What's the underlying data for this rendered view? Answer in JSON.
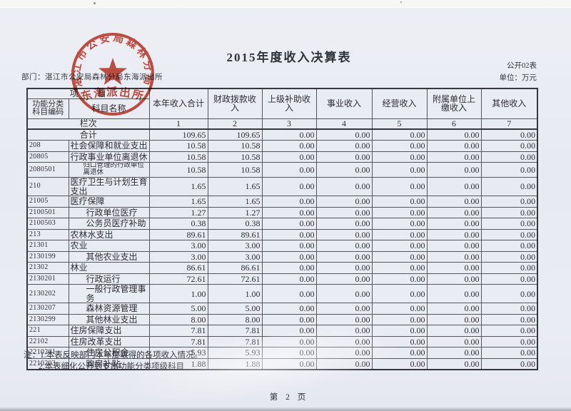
{
  "page": {
    "title": "2015年度收入决算表",
    "department_line": "部门：湛江市公安局森林分局东海派出所",
    "table_code": "公开02表",
    "unit_label": "单位：万元",
    "note_1": "注：1.本表反映部门本年度取得的各项收入情况。",
    "note_2": "2.本表细化公开到支出功能分类项级科目",
    "page_footer": "第 2 页"
  },
  "seal": {
    "ring_text": "湛江市公安局森林分局",
    "bottom_text": "东海派出所",
    "color": "#c43a2b"
  },
  "table": {
    "corner_top": "项　　目",
    "corner_left": "功能分类\n科目编码",
    "corner_right": "科目名称",
    "columns": [
      "本年收入合计",
      "财政拨款收入",
      "上级补助收入",
      "事业收入",
      "经营收入",
      "附属单位上缴收入",
      "其他收入"
    ],
    "lanci_label": "栏次",
    "lanci_numbers": [
      "1",
      "2",
      "3",
      "4",
      "5",
      "6",
      "7"
    ],
    "rows": [
      {
        "code": "",
        "name": "合计",
        "indent": 0,
        "total": true,
        "values": [
          "109.65",
          "109.65",
          "0.00",
          "0.00",
          "0.00",
          "0.00",
          "0.00"
        ]
      },
      {
        "code": "208",
        "name": "社会保障和就业支出",
        "indent": 0,
        "values": [
          "10.58",
          "10.58",
          "0.00",
          "0.00",
          "0.00",
          "0.00",
          "0.00"
        ]
      },
      {
        "code": "20805",
        "name": "行政事业单位离退休",
        "indent": 0,
        "values": [
          "10.58",
          "10.58",
          "0.00",
          "0.00",
          "0.00",
          "0.00",
          "0.00"
        ]
      },
      {
        "code": "2080501",
        "name": "归口管理的行政单位离退休",
        "indent": 2,
        "values": [
          "10.58",
          "10.58",
          "0.00",
          "0.00",
          "0.00",
          "0.00",
          "0.00"
        ]
      },
      {
        "code": "210",
        "name": "医疗卫生与计划生育支出",
        "indent": 0,
        "values": [
          "1.65",
          "1.65",
          "0.00",
          "0.00",
          "0.00",
          "0.00",
          "0.00"
        ]
      },
      {
        "code": "21005",
        "name": "医疗保障",
        "indent": 0,
        "values": [
          "1.65",
          "1.65",
          "0.00",
          "0.00",
          "0.00",
          "0.00",
          "0.00"
        ]
      },
      {
        "code": "2100501",
        "name": "行政单位医疗",
        "indent": 1,
        "values": [
          "1.27",
          "1.27",
          "0.00",
          "0.00",
          "0.00",
          "0.00",
          "0.00"
        ]
      },
      {
        "code": "2100503",
        "name": "公务员医疗补助",
        "indent": 1,
        "values": [
          "0.38",
          "0.38",
          "0.00",
          "0.00",
          "0.00",
          "0.00",
          "0.00"
        ]
      },
      {
        "code": "213",
        "name": "农林水支出",
        "indent": 0,
        "values": [
          "89.61",
          "89.61",
          "0.00",
          "0.00",
          "0.00",
          "0.00",
          "0.00"
        ]
      },
      {
        "code": "21301",
        "name": "农业",
        "indent": 0,
        "values": [
          "3.00",
          "3.00",
          "0.00",
          "0.00",
          "0.00",
          "0.00",
          "0.00"
        ]
      },
      {
        "code": "2130199",
        "name": "其他农业支出",
        "indent": 1,
        "values": [
          "3.00",
          "3.00",
          "0.00",
          "0.00",
          "0.00",
          "0.00",
          "0.00"
        ]
      },
      {
        "code": "21302",
        "name": "林业",
        "indent": 0,
        "values": [
          "86.61",
          "86.61",
          "0.00",
          "0.00",
          "0.00",
          "0.00",
          "0.00"
        ]
      },
      {
        "code": "2130201",
        "name": "行政运行",
        "indent": 1,
        "values": [
          "72.61",
          "72.61",
          "0.00",
          "0.00",
          "0.00",
          "0.00",
          "0.00"
        ]
      },
      {
        "code": "2130202",
        "name": "一般行政管理事务",
        "indent": 1,
        "values": [
          "1.00",
          "1.00",
          "0.00",
          "0.00",
          "0.00",
          "0.00",
          "0.00"
        ]
      },
      {
        "code": "2130207",
        "name": "森林资源管理",
        "indent": 1,
        "values": [
          "5.00",
          "5.00",
          "0.00",
          "0.00",
          "0.00",
          "0.00",
          "0.00"
        ]
      },
      {
        "code": "2130299",
        "name": "其他林业支出",
        "indent": 1,
        "values": [
          "8.00",
          "8.00",
          "0.00",
          "0.00",
          "0.00",
          "0.00",
          "0.00"
        ]
      },
      {
        "code": "221",
        "name": "住房保障支出",
        "indent": 0,
        "values": [
          "7.81",
          "7.81",
          "0.00",
          "0.00",
          "0.00",
          "0.00",
          "0.00"
        ]
      },
      {
        "code": "22102",
        "name": "住房改革支出",
        "indent": 0,
        "values": [
          "7.81",
          "7.81",
          "0.00",
          "0.00",
          "0.00",
          "0.00",
          "0.00"
        ]
      },
      {
        "code": "2210201",
        "name": "住房公积金",
        "indent": 1,
        "values": [
          "5.93",
          "5.93",
          "0.00",
          "0.00",
          "0.00",
          "0.00",
          "0.00"
        ]
      },
      {
        "code": "2210203",
        "name": "购房补贴",
        "indent": 1,
        "values": [
          "1.88",
          "1.88",
          "0.00",
          "0.00",
          "0.00",
          "0.00",
          "0.00"
        ]
      }
    ]
  }
}
